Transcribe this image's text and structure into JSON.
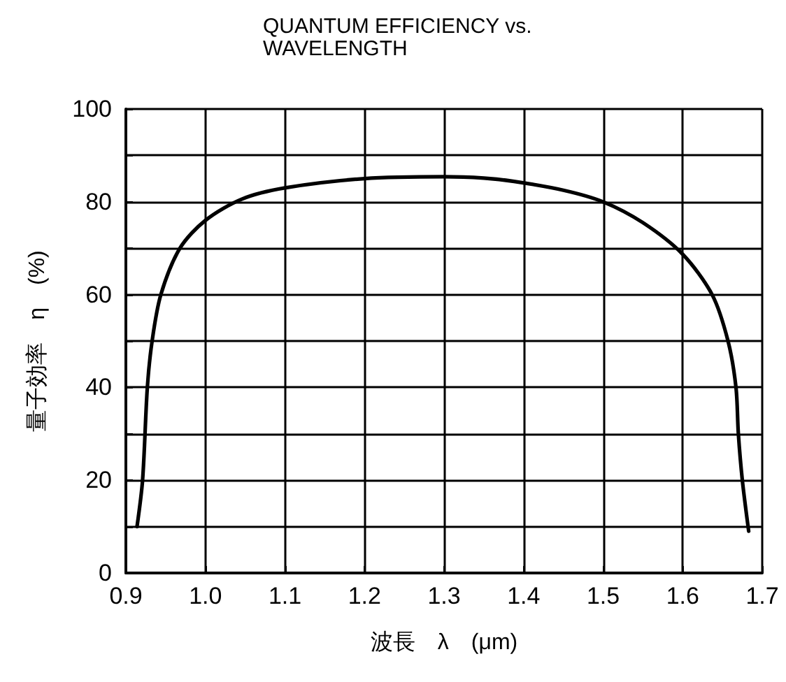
{
  "chart_data": {
    "type": "line",
    "title": "QUANTUM EFFICIENCY vs.\nWAVELENGTH",
    "xlabel": "波長　λ　(μm)",
    "ylabel": "量子効率　η　(%)",
    "series": [
      {
        "color": "#000000",
        "x": [
          0.914,
          0.921,
          0.927,
          0.933,
          0.944,
          0.968,
          1.0,
          1.046,
          1.1,
          1.2,
          1.3,
          1.35,
          1.388,
          1.45,
          1.5,
          1.55,
          1.6,
          1.637,
          1.657,
          1.667,
          1.67,
          1.675,
          1.683
        ],
        "values": [
          10,
          20,
          40,
          50,
          60,
          70,
          76,
          80.6,
          83,
          85,
          85.4,
          85.1,
          84.4,
          82.5,
          80,
          75.5,
          68.7,
          60,
          50,
          40,
          30,
          20,
          9
        ]
      }
    ],
    "xlim": [
      0.9,
      1.7
    ],
    "xticks": [
      0.9,
      {
        "value": 1.0,
        "label": "1.0"
      },
      1.1,
      1.2,
      1.3,
      1.4,
      1.5,
      1.6,
      1.7
    ],
    "ylim": [
      0,
      100
    ],
    "yticks": [
      0,
      {
        "value": 10,
        "label": null
      },
      20,
      {
        "value": 30,
        "label": null
      },
      40,
      {
        "value": 50,
        "label": null
      },
      60,
      {
        "value": 70,
        "label": null
      },
      80,
      {
        "value": 90,
        "label": null
      },
      100
    ],
    "grid": true,
    "marker": "none",
    "line_style": "solid"
  }
}
